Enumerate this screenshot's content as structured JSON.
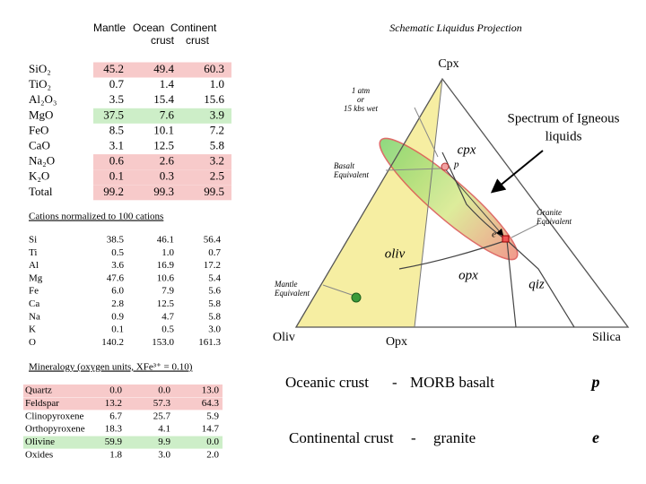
{
  "oxides": {
    "header": [
      "Mantle",
      "Ocean",
      "Continent"
    ],
    "subheader": [
      "crust",
      "crust"
    ],
    "rows": [
      {
        "label": "SiO₂",
        "values": [
          "45.2",
          "49.4",
          "60.3"
        ],
        "highlight": "#f7caca"
      },
      {
        "label": "TiO₂",
        "values": [
          "0.7",
          "1.4",
          "1.0"
        ],
        "highlight": null
      },
      {
        "label": "Al₂O₃",
        "values": [
          "3.5",
          "15.4",
          "15.6"
        ],
        "highlight": null
      },
      {
        "label": "MgO",
        "values": [
          "37.5",
          "7.6",
          "3.9"
        ],
        "highlight": "#cdeec8"
      },
      {
        "label": "FeO",
        "values": [
          "8.5",
          "10.1",
          "7.2"
        ],
        "highlight": null
      },
      {
        "label": "CaO",
        "values": [
          "3.1",
          "12.5",
          "5.8"
        ],
        "highlight": null
      },
      {
        "label": "Na₂O",
        "values": [
          "0.6",
          "2.6",
          "3.2"
        ],
        "highlight": "#f7caca"
      },
      {
        "label": "K₂O",
        "values": [
          "0.1",
          "0.3",
          "2.5"
        ],
        "highlight": "#f7caca"
      },
      {
        "label": "Total",
        "values": [
          "99.2",
          "99.3",
          "99.5"
        ],
        "highlight": "#f7caca"
      }
    ]
  },
  "cations": {
    "title": "Cations normalized to  100 cations",
    "rows": [
      {
        "label": "Si",
        "values": [
          "38.5",
          "46.1",
          "56.4"
        ]
      },
      {
        "label": "Ti",
        "values": [
          "0.5",
          "1.0",
          "0.7"
        ]
      },
      {
        "label": "Al",
        "values": [
          "3.6",
          "16.9",
          "17.2"
        ]
      },
      {
        "label": "Mg",
        "values": [
          "47.6",
          "10.6",
          "5.4"
        ]
      },
      {
        "label": "Fe",
        "values": [
          "6.0",
          "7.9",
          "5.6"
        ]
      },
      {
        "label": "Ca",
        "values": [
          "2.8",
          "12.5",
          "5.8"
        ]
      },
      {
        "label": "Na",
        "values": [
          "0.9",
          "4.7",
          "5.8"
        ]
      },
      {
        "label": "K",
        "values": [
          "0.1",
          "0.5",
          "3.0"
        ]
      },
      {
        "label": "O",
        "values": [
          "140.2",
          "153.0",
          "161.3"
        ]
      }
    ]
  },
  "mineralogy": {
    "title": "Mineralogy (oxygen units, XFe³⁺ = 0.10)",
    "rows": [
      {
        "label": "Quartz",
        "values": [
          "0.0",
          "0.0",
          "13.0"
        ],
        "highlight": "#f7caca"
      },
      {
        "label": "Feldspar",
        "values": [
          "13.2",
          "57.3",
          "64.3"
        ],
        "highlight": "#f7caca"
      },
      {
        "label": "Clinopyroxene",
        "values": [
          "6.7",
          "25.7",
          "5.9"
        ],
        "highlight": null
      },
      {
        "label": "Orthopyroxene",
        "values": [
          "18.3",
          "4.1",
          "14.7"
        ],
        "highlight": null
      },
      {
        "label": "Olivine",
        "values": [
          "59.9",
          "9.9",
          "0.0"
        ],
        "highlight": "#cdeec8"
      },
      {
        "label": "Oxides",
        "values": [
          "1.8",
          "3.0",
          "2.0"
        ],
        "highlight": null
      }
    ]
  },
  "diagram": {
    "title": "Schematic Liquidus Projection",
    "vertex_cpx": "Cpx",
    "vertex_oliv": "Oliv",
    "vertex_silica": "Silica",
    "vertex_opx": "Opx",
    "field_cpx": "cpx",
    "field_oliv": "oliv",
    "field_opx": "opx",
    "field_qtz": "qiz",
    "note_pressure": [
      "1 atm",
      "or",
      "15 kbs wet"
    ],
    "basalt": [
      "Basalt",
      "Equivalent"
    ],
    "granite": [
      "Granite",
      "Equivalent"
    ],
    "mantle": [
      "Mantle",
      "Equivalent"
    ],
    "point_p": "p",
    "point_e": "e",
    "spectrum": [
      "Spectrum of Igneous",
      "liquids"
    ]
  },
  "legend": [
    {
      "crust": "Oceanic crust",
      "sep": "-",
      "rock": "MORB basalt",
      "symbol": "p"
    },
    {
      "crust": "Continental crust",
      "sep": "-",
      "rock": "granite",
      "symbol": "e"
    }
  ]
}
